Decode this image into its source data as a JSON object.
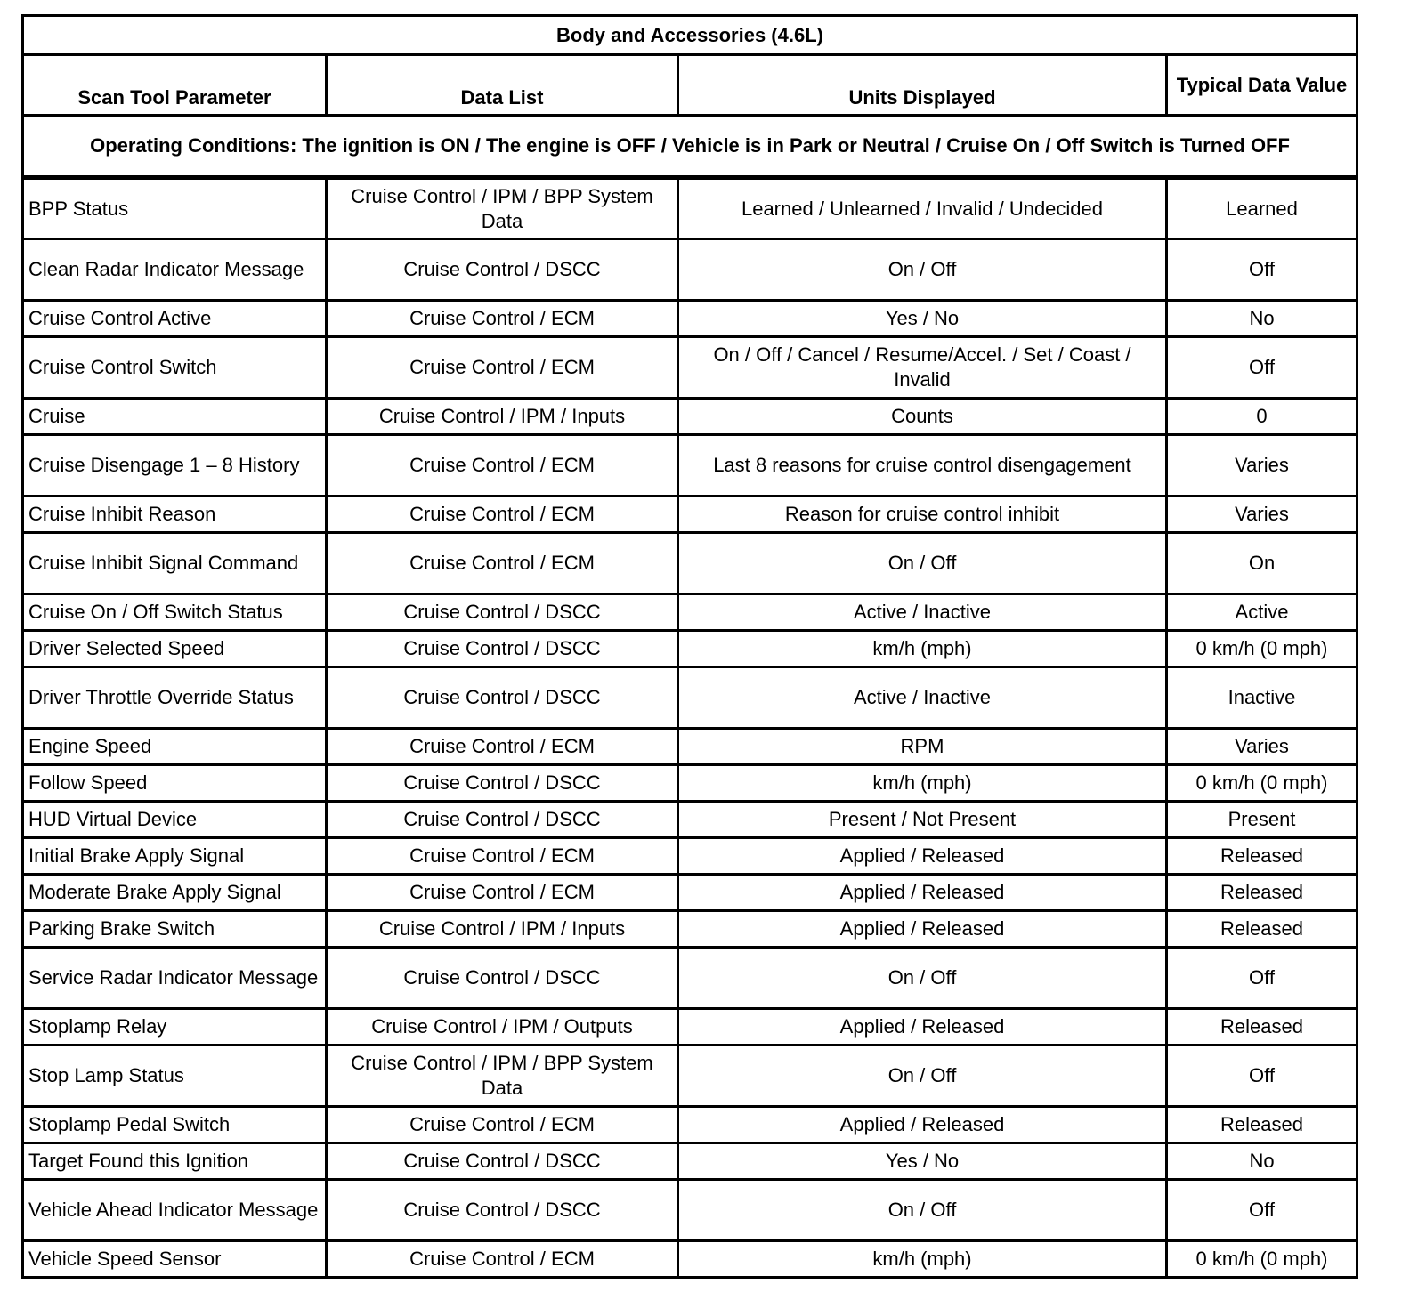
{
  "title": "Body and Accessories (4.6L)",
  "headers": [
    "Scan Tool Parameter",
    "Data List",
    "Units Displayed",
    "Typical Data Value"
  ],
  "operating_conditions": "Operating Conditions: The ignition is ON / The engine is OFF / Vehicle is in Park or Neutral / Cruise On / Off Switch is Turned OFF",
  "rows": [
    {
      "parameter": "BPP Status",
      "data_list": "Cruise Control / IPM / BPP System Data",
      "units": "Learned / Unlearned / Invalid / Undecided",
      "typical": "Learned"
    },
    {
      "parameter": "Clean Radar Indicator Message",
      "data_list": "Cruise Control / DSCC",
      "units": "On / Off",
      "typical": "Off"
    },
    {
      "parameter": "Cruise Control Active",
      "data_list": "Cruise Control / ECM",
      "units": "Yes / No",
      "typical": "No"
    },
    {
      "parameter": "Cruise Control Switch",
      "data_list": "Cruise Control / ECM",
      "units": "On / Off / Cancel / Resume/Accel. / Set / Coast / Invalid",
      "typical": "Off"
    },
    {
      "parameter": "Cruise",
      "data_list": "Cruise Control / IPM / Inputs",
      "units": "Counts",
      "typical": "0"
    },
    {
      "parameter": "Cruise Disengage 1 – 8 History",
      "data_list": "Cruise Control / ECM",
      "units": "Last 8 reasons for cruise control disengagement",
      "typical": "Varies"
    },
    {
      "parameter": "Cruise Inhibit Reason",
      "data_list": "Cruise Control / ECM",
      "units": "Reason for cruise control inhibit",
      "typical": "Varies"
    },
    {
      "parameter": "Cruise Inhibit Signal Command",
      "data_list": "Cruise Control / ECM",
      "units": "On / Off",
      "typical": "On"
    },
    {
      "parameter": "Cruise On / Off Switch Status",
      "data_list": "Cruise Control / DSCC",
      "units": "Active / Inactive",
      "typical": "Active"
    },
    {
      "parameter": "Driver Selected Speed",
      "data_list": "Cruise Control / DSCC",
      "units": "km/h (mph)",
      "typical": "0 km/h (0 mph)"
    },
    {
      "parameter": "Driver Throttle Override Status",
      "data_list": "Cruise Control / DSCC",
      "units": "Active / Inactive",
      "typical": "Inactive"
    },
    {
      "parameter": "Engine Speed",
      "data_list": "Cruise Control / ECM",
      "units": "RPM",
      "typical": "Varies"
    },
    {
      "parameter": "Follow Speed",
      "data_list": "Cruise Control / DSCC",
      "units": "km/h (mph)",
      "typical": "0 km/h (0 mph)"
    },
    {
      "parameter": "HUD Virtual Device",
      "data_list": "Cruise Control / DSCC",
      "units": "Present / Not Present",
      "typical": "Present"
    },
    {
      "parameter": "Initial Brake Apply Signal",
      "data_list": "Cruise Control / ECM",
      "units": "Applied / Released",
      "typical": "Released"
    },
    {
      "parameter": "Moderate Brake Apply Signal",
      "data_list": "Cruise Control / ECM",
      "units": "Applied / Released",
      "typical": "Released"
    },
    {
      "parameter": "Parking Brake Switch",
      "data_list": "Cruise Control / IPM / Inputs",
      "units": "Applied / Released",
      "typical": "Released"
    },
    {
      "parameter": "Service Radar Indicator Message",
      "data_list": "Cruise Control / DSCC",
      "units": "On / Off",
      "typical": "Off"
    },
    {
      "parameter": "Stoplamp Relay",
      "data_list": "Cruise Control / IPM / Outputs",
      "units": "Applied / Released",
      "typical": "Released"
    },
    {
      "parameter": "Stop Lamp Status",
      "data_list": "Cruise Control / IPM / BPP System Data",
      "units": "On / Off",
      "typical": "Off"
    },
    {
      "parameter": "Stoplamp Pedal Switch",
      "data_list": "Cruise Control / ECM",
      "units": "Applied / Released",
      "typical": "Released"
    },
    {
      "parameter": "Target Found this Ignition",
      "data_list": "Cruise Control / DSCC",
      "units": "Yes / No",
      "typical": "No"
    },
    {
      "parameter": "Vehicle Ahead Indicator Message",
      "data_list": "Cruise Control / DSCC",
      "units": "On / Off",
      "typical": "Off"
    },
    {
      "parameter": "Vehicle Speed Sensor",
      "data_list": "Cruise Control / ECM",
      "units": "km/h (mph)",
      "typical": "0 km/h (0 mph)"
    }
  ]
}
